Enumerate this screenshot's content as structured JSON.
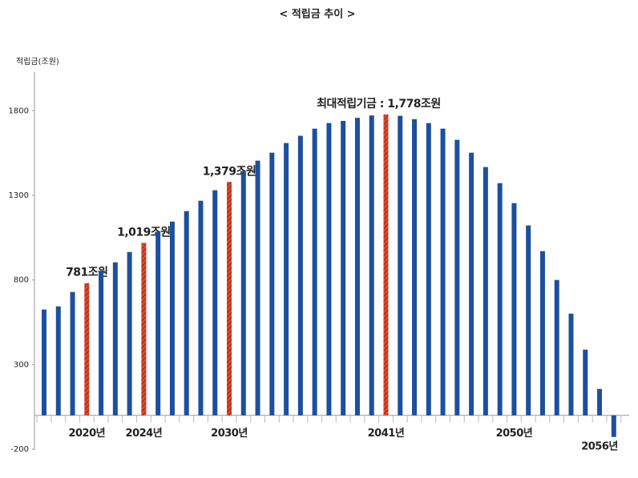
{
  "chart_data": {
    "type": "bar",
    "title": "< 적립금 추이 >",
    "y_label": "적립금(조원)",
    "categories": [
      null,
      null,
      null,
      "2020년",
      null,
      null,
      null,
      "2024년",
      null,
      null,
      null,
      null,
      null,
      "2030년",
      null,
      null,
      null,
      null,
      null,
      null,
      null,
      null,
      null,
      null,
      "2041년",
      null,
      null,
      null,
      null,
      null,
      null,
      null,
      null,
      "2050년",
      null,
      null,
      null,
      null,
      null,
      "2056년",
      null
    ],
    "values": [
      625,
      644,
      729,
      781,
      852,
      904,
      965,
      1019,
      1084,
      1145,
      1207,
      1268,
      1330,
      1379,
      1443,
      1505,
      1552,
      1609,
      1652,
      1694,
      1727,
      1740,
      1758,
      1772,
      1778,
      1770,
      1750,
      1727,
      1694,
      1628,
      1552,
      1467,
      1372,
      1254,
      1122,
      970,
      800,
      601,
      388,
      156,
      -128
    ],
    "value_labels": [
      null,
      null,
      null,
      "781조원",
      null,
      null,
      null,
      "1,019조원",
      null,
      null,
      null,
      null,
      null,
      "1,379조원",
      null,
      null,
      null,
      null,
      null,
      null,
      null,
      null,
      null,
      null,
      "최대적립기금 : 1,778조원",
      null,
      null,
      null,
      null,
      null,
      null,
      null,
      null,
      null,
      null,
      null,
      null,
      null,
      null,
      null,
      null
    ],
    "color": "#1d4f9f",
    "highlight_color": "#e0452b",
    "ylim": [
      -200,
      2000
    ],
    "yticks": [
      -200,
      300,
      800,
      1300,
      1800
    ]
  }
}
